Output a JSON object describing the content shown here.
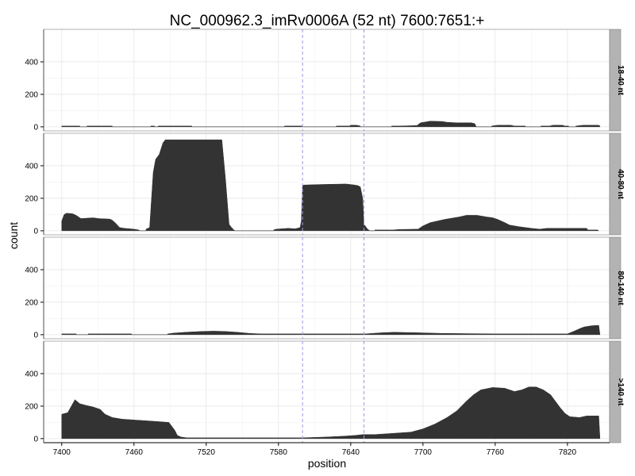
{
  "chart_data": {
    "type": "area",
    "title": "NC_000962.3_imRv0006A (52 nt) 7600:7651:+",
    "xlabel": "position",
    "ylabel": "count",
    "x_ticks": [
      7400,
      7460,
      7520,
      7580,
      7640,
      7700,
      7760,
      7820
    ],
    "y_ticks": [
      0,
      200,
      400
    ],
    "xlim": [
      7385,
      7855
    ],
    "ylim": [
      -25,
      600
    ],
    "grid": true,
    "facet_strip_position": "right",
    "reference_lines": [
      7600,
      7651
    ],
    "reference_line_color": "#9a9ae6",
    "fill_color": "#333333",
    "strip_color": "#b3b3b3",
    "panels": [
      {
        "label": "18-40 nt",
        "points": [
          [
            7400,
            0
          ],
          [
            7400,
            5
          ],
          [
            7415,
            5
          ],
          [
            7415,
            0
          ],
          [
            7421,
            0
          ],
          [
            7421,
            5
          ],
          [
            7442,
            5
          ],
          [
            7442,
            0
          ],
          [
            7474,
            0
          ],
          [
            7474,
            5
          ],
          [
            7477,
            5
          ],
          [
            7477,
            0
          ],
          [
            7480,
            0
          ],
          [
            7480,
            5
          ],
          [
            7508,
            5
          ],
          [
            7508,
            0
          ],
          [
            7585,
            0
          ],
          [
            7585,
            5
          ],
          [
            7600,
            5
          ],
          [
            7600,
            0
          ],
          [
            7628,
            0
          ],
          [
            7628,
            5
          ],
          [
            7639,
            5
          ],
          [
            7640,
            10
          ],
          [
            7645,
            10
          ],
          [
            7648,
            5
          ],
          [
            7648,
            0
          ],
          [
            7674,
            0
          ],
          [
            7674,
            5
          ],
          [
            7680,
            5
          ],
          [
            7695,
            8
          ],
          [
            7698,
            25
          ],
          [
            7702,
            30
          ],
          [
            7706,
            35
          ],
          [
            7716,
            33
          ],
          [
            7720,
            28
          ],
          [
            7728,
            25
          ],
          [
            7740,
            25
          ],
          [
            7743,
            20
          ],
          [
            7744,
            5
          ],
          [
            7744,
            0
          ],
          [
            7757,
            0
          ],
          [
            7757,
            5
          ],
          [
            7762,
            10
          ],
          [
            7773,
            10
          ],
          [
            7776,
            5
          ],
          [
            7785,
            5
          ],
          [
            7785,
            0
          ],
          [
            7798,
            0
          ],
          [
            7798,
            5
          ],
          [
            7805,
            5
          ],
          [
            7808,
            10
          ],
          [
            7816,
            10
          ],
          [
            7818,
            5
          ],
          [
            7821,
            5
          ],
          [
            7821,
            0
          ],
          [
            7827,
            0
          ],
          [
            7827,
            5
          ],
          [
            7833,
            10
          ],
          [
            7846,
            10
          ],
          [
            7847,
            5
          ],
          [
            7847,
            0
          ]
        ]
      },
      {
        "label": "40-80 nt",
        "points": [
          [
            7400,
            0
          ],
          [
            7400,
            60
          ],
          [
            7402,
            100
          ],
          [
            7404,
            108
          ],
          [
            7409,
            105
          ],
          [
            7412,
            95
          ],
          [
            7416,
            75
          ],
          [
            7422,
            78
          ],
          [
            7426,
            80
          ],
          [
            7431,
            75
          ],
          [
            7440,
            72
          ],
          [
            7442,
            65
          ],
          [
            7445,
            45
          ],
          [
            7448,
            20
          ],
          [
            7452,
            15
          ],
          [
            7460,
            10
          ],
          [
            7464,
            5
          ],
          [
            7465,
            0
          ],
          [
            7470,
            0
          ],
          [
            7470,
            10
          ],
          [
            7473,
            20
          ],
          [
            7476,
            360
          ],
          [
            7478,
            440
          ],
          [
            7481,
            470
          ],
          [
            7484,
            540
          ],
          [
            7486,
            560
          ],
          [
            7533,
            560
          ],
          [
            7536,
            320
          ],
          [
            7539,
            40
          ],
          [
            7541,
            20
          ],
          [
            7543,
            5
          ],
          [
            7544,
            0
          ],
          [
            7576,
            0
          ],
          [
            7576,
            5
          ],
          [
            7578,
            10
          ],
          [
            7588,
            15
          ],
          [
            7594,
            12
          ],
          [
            7598,
            20
          ],
          [
            7599,
            60
          ],
          [
            7600,
            280
          ],
          [
            7602,
            282
          ],
          [
            7616,
            285
          ],
          [
            7636,
            288
          ],
          [
            7643,
            282
          ],
          [
            7646,
            278
          ],
          [
            7648,
            270
          ],
          [
            7650,
            200
          ],
          [
            7651,
            40
          ],
          [
            7653,
            20
          ],
          [
            7654,
            10
          ],
          [
            7655,
            5
          ],
          [
            7656,
            0
          ],
          [
            7660,
            0
          ],
          [
            7660,
            5
          ],
          [
            7675,
            5
          ],
          [
            7680,
            8
          ],
          [
            7696,
            10
          ],
          [
            7700,
            30
          ],
          [
            7706,
            50
          ],
          [
            7712,
            60
          ],
          [
            7718,
            70
          ],
          [
            7730,
            85
          ],
          [
            7736,
            95
          ],
          [
            7745,
            95
          ],
          [
            7753,
            85
          ],
          [
            7758,
            80
          ],
          [
            7762,
            70
          ],
          [
            7768,
            50
          ],
          [
            7772,
            35
          ],
          [
            7780,
            25
          ],
          [
            7785,
            20
          ],
          [
            7790,
            15
          ],
          [
            7797,
            10
          ],
          [
            7803,
            15
          ],
          [
            7836,
            15
          ],
          [
            7837,
            5
          ],
          [
            7840,
            5
          ],
          [
            7845,
            5
          ],
          [
            7846,
            0
          ]
        ]
      },
      {
        "label": "80-140 nt",
        "points": [
          [
            7400,
            0
          ],
          [
            7400,
            5
          ],
          [
            7412,
            5
          ],
          [
            7412,
            0
          ],
          [
            7422,
            0
          ],
          [
            7422,
            5
          ],
          [
            7458,
            5
          ],
          [
            7458,
            0
          ],
          [
            7488,
            0
          ],
          [
            7488,
            5
          ],
          [
            7493,
            10
          ],
          [
            7503,
            15
          ],
          [
            7516,
            20
          ],
          [
            7526,
            22
          ],
          [
            7536,
            20
          ],
          [
            7546,
            15
          ],
          [
            7556,
            8
          ],
          [
            7566,
            5
          ],
          [
            7606,
            5
          ],
          [
            7626,
            5
          ],
          [
            7652,
            5
          ],
          [
            7658,
            8
          ],
          [
            7666,
            12
          ],
          [
            7676,
            15
          ],
          [
            7696,
            12
          ],
          [
            7706,
            10
          ],
          [
            7716,
            8
          ],
          [
            7760,
            5
          ],
          [
            7820,
            5
          ],
          [
            7825,
            20
          ],
          [
            7828,
            30
          ],
          [
            7831,
            40
          ],
          [
            7834,
            48
          ],
          [
            7840,
            55
          ],
          [
            7846,
            58
          ],
          [
            7847,
            0
          ]
        ]
      },
      {
        "label": ">140 nt",
        "points": [
          [
            7400,
            0
          ],
          [
            7400,
            150
          ],
          [
            7405,
            160
          ],
          [
            7408,
            200
          ],
          [
            7411,
            240
          ],
          [
            7415,
            215
          ],
          [
            7420,
            205
          ],
          [
            7426,
            195
          ],
          [
            7432,
            180
          ],
          [
            7436,
            150
          ],
          [
            7442,
            130
          ],
          [
            7450,
            120
          ],
          [
            7460,
            115
          ],
          [
            7470,
            110
          ],
          [
            7480,
            105
          ],
          [
            7489,
            100
          ],
          [
            7491,
            80
          ],
          [
            7494,
            50
          ],
          [
            7496,
            20
          ],
          [
            7499,
            10
          ],
          [
            7504,
            5
          ],
          [
            7520,
            5
          ],
          [
            7560,
            5
          ],
          [
            7600,
            5
          ],
          [
            7620,
            10
          ],
          [
            7634,
            15
          ],
          [
            7644,
            20
          ],
          [
            7650,
            25
          ],
          [
            7660,
            25
          ],
          [
            7670,
            30
          ],
          [
            7680,
            35
          ],
          [
            7690,
            40
          ],
          [
            7700,
            60
          ],
          [
            7710,
            90
          ],
          [
            7720,
            130
          ],
          [
            7728,
            170
          ],
          [
            7736,
            230
          ],
          [
            7742,
            270
          ],
          [
            7748,
            300
          ],
          [
            7758,
            315
          ],
          [
            7768,
            310
          ],
          [
            7776,
            290
          ],
          [
            7782,
            300
          ],
          [
            7788,
            318
          ],
          [
            7794,
            318
          ],
          [
            7800,
            300
          ],
          [
            7806,
            270
          ],
          [
            7810,
            230
          ],
          [
            7814,
            190
          ],
          [
            7818,
            155
          ],
          [
            7822,
            135
          ],
          [
            7830,
            130
          ],
          [
            7836,
            140
          ],
          [
            7846,
            140
          ],
          [
            7847,
            0
          ]
        ]
      }
    ]
  }
}
